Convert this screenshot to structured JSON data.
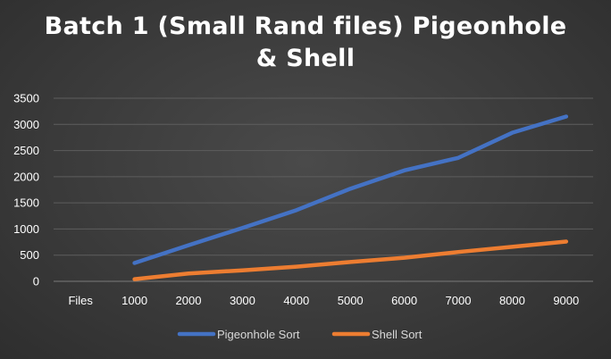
{
  "chart_data": {
    "type": "line",
    "title_line1": "Batch 1 (Small Rand files) Pigeonhole",
    "title_line2": "& Shell",
    "categories": [
      "Files",
      "1000",
      "2000",
      "3000",
      "4000",
      "5000",
      "6000",
      "7000",
      "8000",
      "9000"
    ],
    "series": [
      {
        "name": "Pigeonhole Sort",
        "color": "#4472c4",
        "values": [
          null,
          350,
          690,
          1020,
          1360,
          1770,
          2120,
          2360,
          2840,
          3150
        ]
      },
      {
        "name": "Shell Sort",
        "color": "#ed7d31",
        "values": [
          null,
          40,
          150,
          210,
          280,
          370,
          450,
          560,
          660,
          760
        ]
      }
    ],
    "yticks": [
      "0",
      "500",
      "1000",
      "1500",
      "2000",
      "2500",
      "3000",
      "3500"
    ],
    "ylim": [
      0,
      3500
    ],
    "grid": true,
    "legend_position": "bottom"
  }
}
